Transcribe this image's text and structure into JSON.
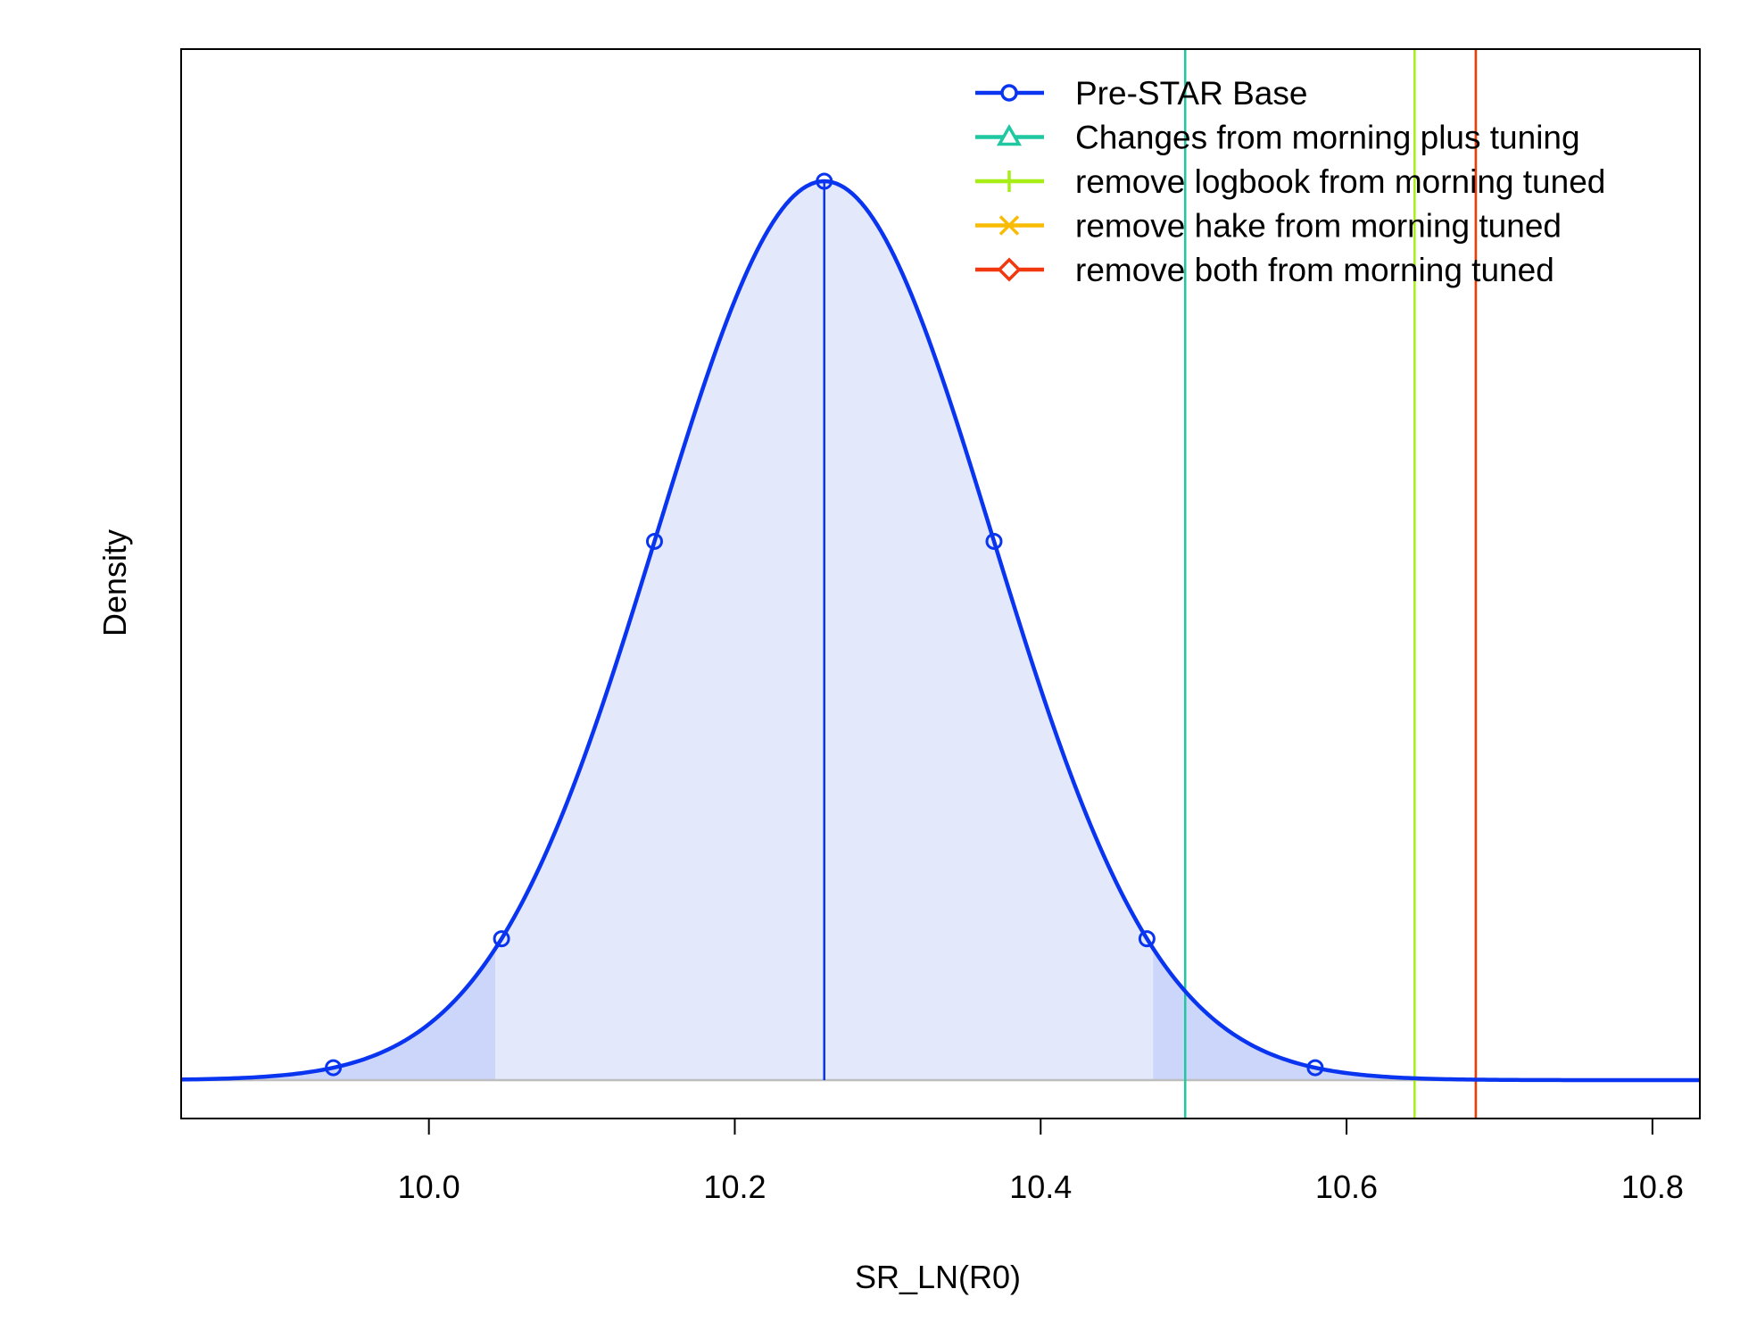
{
  "chart_data": {
    "type": "line",
    "title": "",
    "xlabel": "SR_LN(R0)",
    "ylabel": "Density",
    "xlim": [
      9.838,
      10.831
    ],
    "x_ticks": [
      "10.0",
      "10.2",
      "10.4",
      "10.6",
      "10.8"
    ],
    "x_tick_values": [
      10.0,
      10.2,
      10.4,
      10.6,
      10.8
    ],
    "grid": false,
    "legend_position": "top-right",
    "distribution": {
      "series": "Pre-STAR Base",
      "mean": 10.2585,
      "sd": 0.1097,
      "ci_lower": 10.0435,
      "ci_upper": 10.4735,
      "marker_x": [
        9.9375,
        10.0475,
        10.1475,
        10.2585,
        10.3695,
        10.4695,
        10.5795
      ]
    },
    "series": [
      {
        "name": "Pre-STAR Base",
        "type": "density",
        "value": 10.2585,
        "color": "#0a35f0",
        "marker": "circle"
      },
      {
        "name": "Changes from morning plus tuning",
        "type": "vline",
        "value": 10.4945,
        "color": "#1fc8a0",
        "marker": "triangle"
      },
      {
        "name": "remove logbook from morning tuned",
        "type": "vline",
        "value": 10.6445,
        "color": "#a6ee16",
        "marker": "plus"
      },
      {
        "name": "remove hake from morning tuned",
        "type": "vline",
        "value": 10.6845,
        "color": "#f8bc05",
        "marker": "cross"
      },
      {
        "name": "remove both from morning tuned",
        "type": "vline",
        "value": 10.6845,
        "color": "#f2380e",
        "marker": "diamond"
      }
    ],
    "colors": {
      "fill_inner": "#e3e8fb",
      "fill_tails": "#ccd5fa",
      "baseline": "#bebebe"
    }
  }
}
